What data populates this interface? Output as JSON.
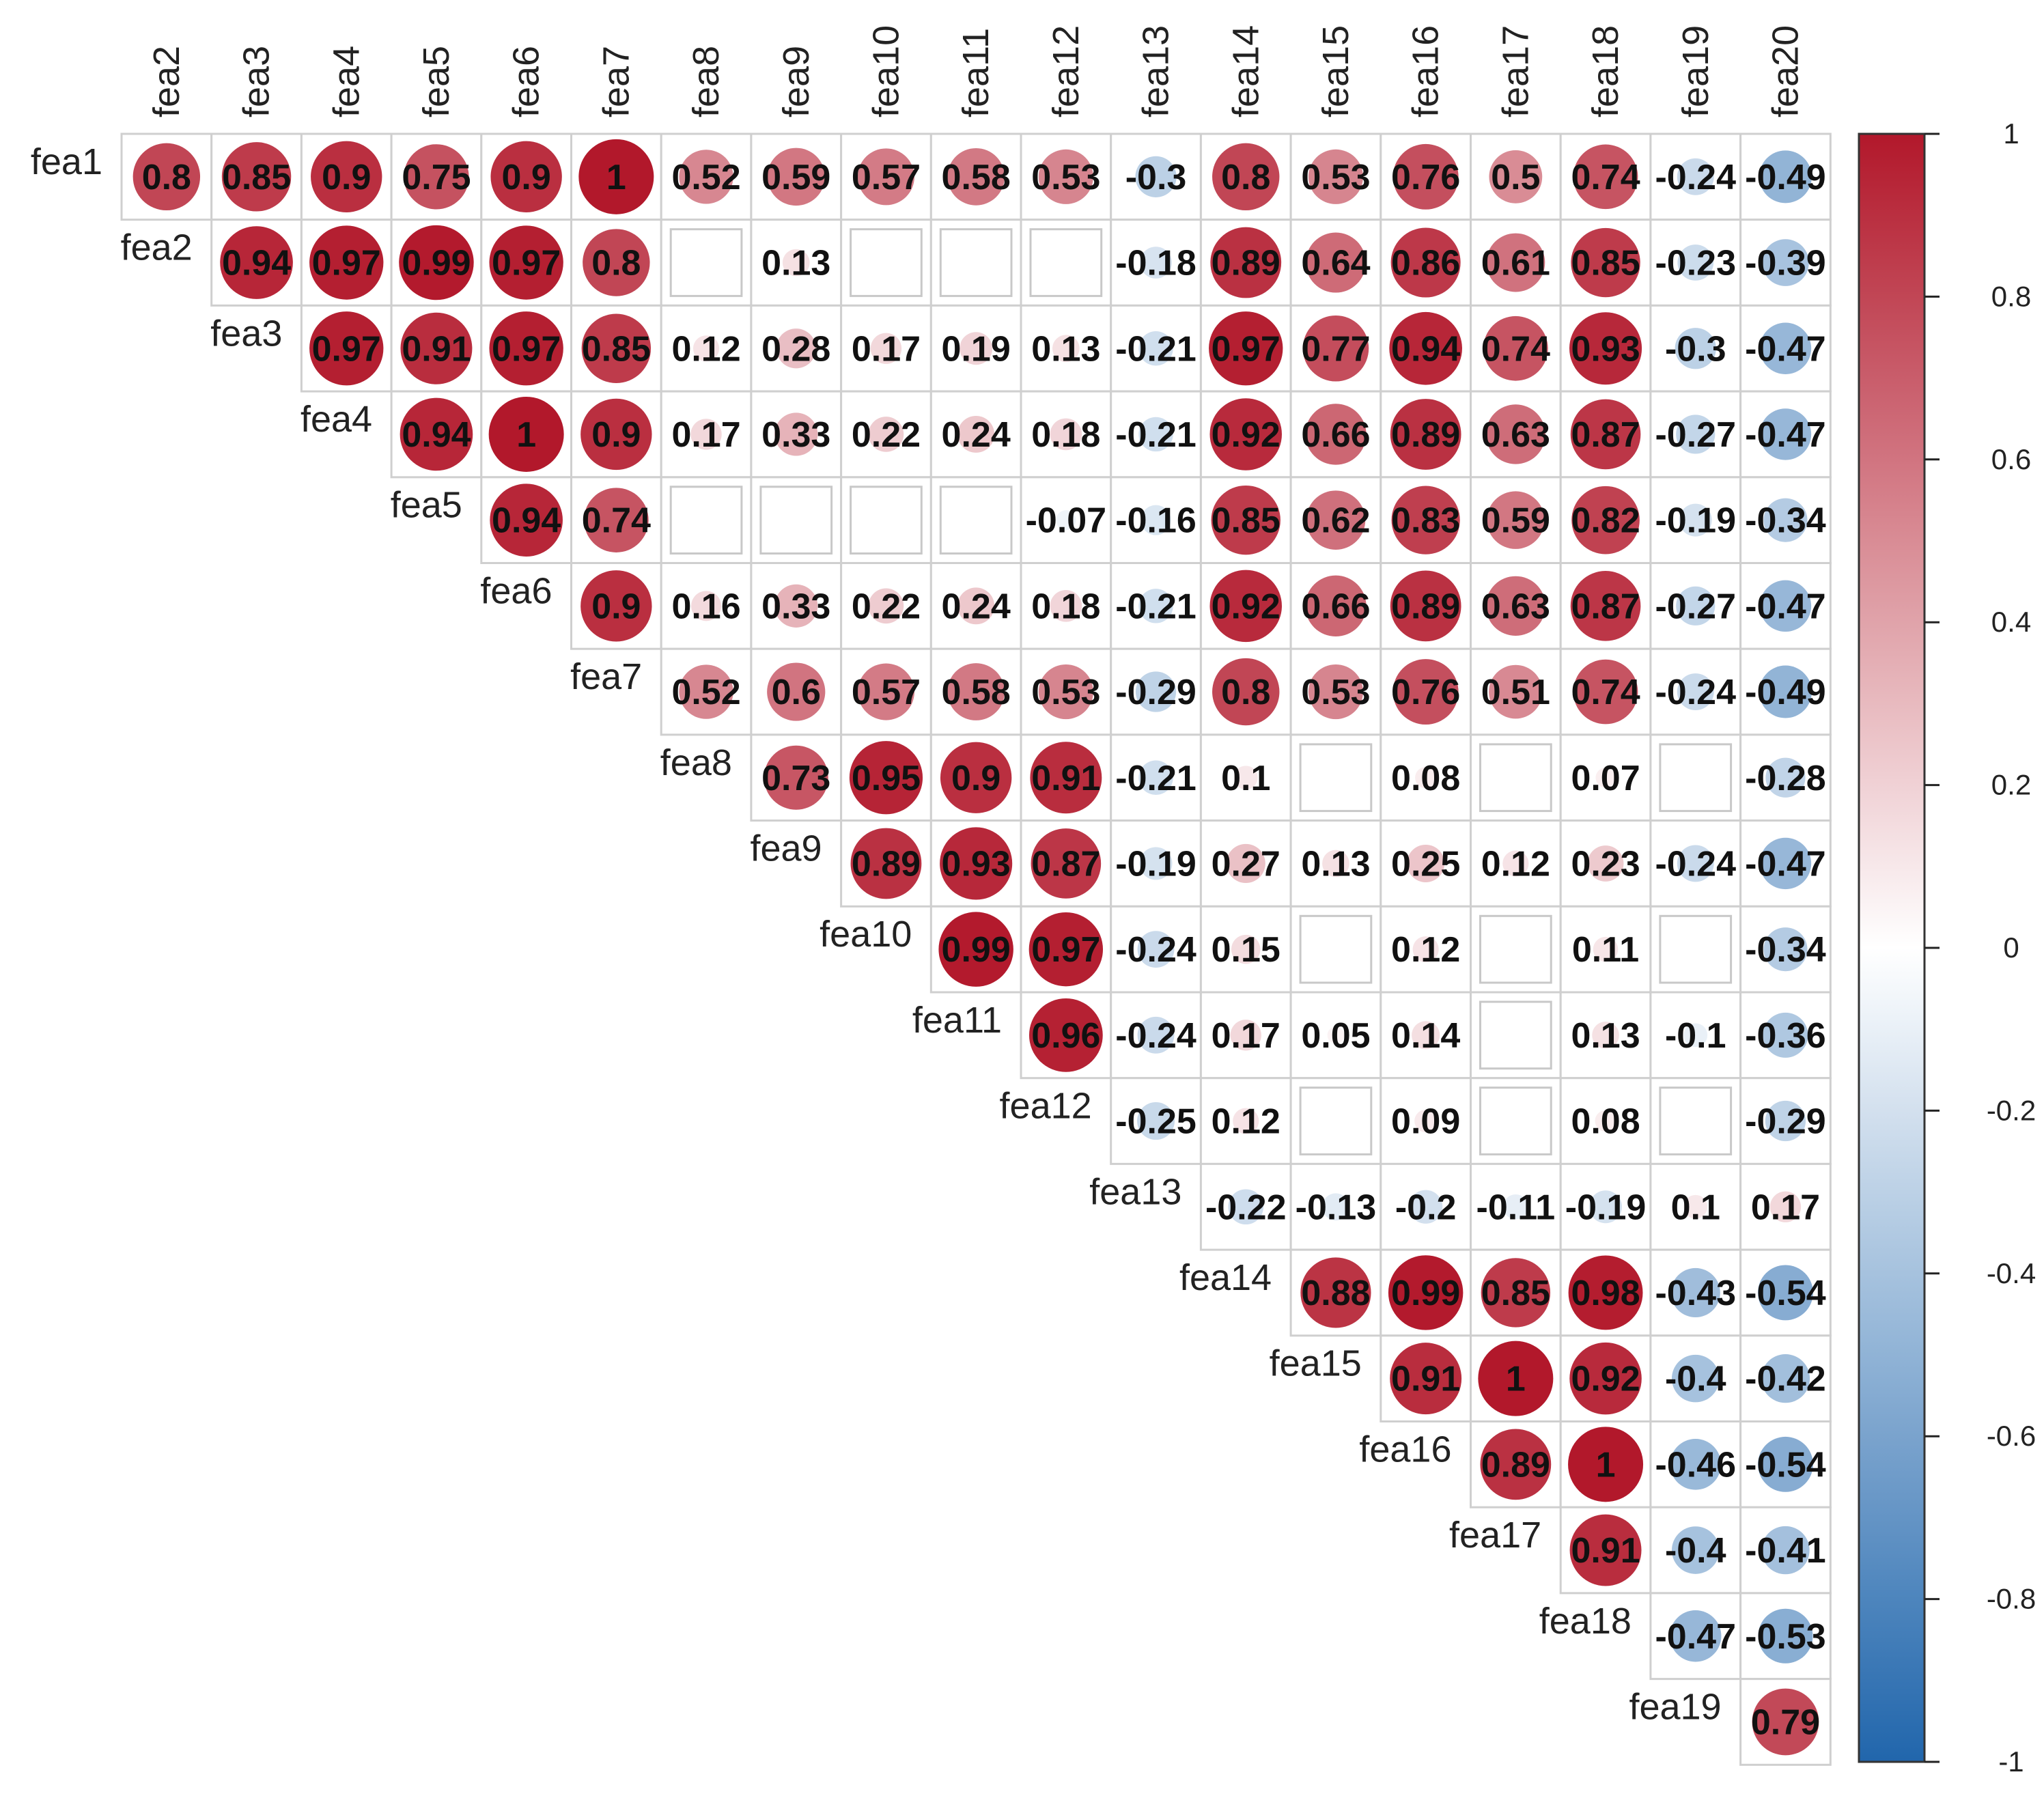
{
  "chart_data": {
    "type": "heatmap",
    "title": "",
    "xlabel": "",
    "ylabel": "",
    "row_labels": [
      "fea1",
      "fea2",
      "fea3",
      "fea4",
      "fea5",
      "fea6",
      "fea7",
      "fea8",
      "fea9",
      "fea10",
      "fea11",
      "fea12",
      "fea13",
      "fea14",
      "fea15",
      "fea16",
      "fea17",
      "fea18",
      "fea19"
    ],
    "col_labels": [
      "fea2",
      "fea3",
      "fea4",
      "fea5",
      "fea6",
      "fea7",
      "fea8",
      "fea9",
      "fea10",
      "fea11",
      "fea12",
      "fea13",
      "fea14",
      "fea15",
      "fea16",
      "fea17",
      "fea18",
      "fea19",
      "fea20"
    ],
    "matrix": [
      [
        0.8,
        0.85,
        0.9,
        0.75,
        0.9,
        1,
        0.52,
        0.59,
        0.57,
        0.58,
        0.53,
        -0.3,
        0.8,
        0.53,
        0.76,
        0.5,
        0.74,
        -0.24,
        -0.49
      ],
      [
        0.94,
        0.97,
        0.99,
        0.97,
        0.8,
        null,
        0.13,
        null,
        null,
        null,
        -0.18,
        0.89,
        0.64,
        0.86,
        0.61,
        0.85,
        -0.23,
        -0.39
      ],
      [
        0.97,
        0.91,
        0.97,
        0.85,
        0.12,
        0.28,
        0.17,
        0.19,
        0.13,
        -0.21,
        0.97,
        0.77,
        0.94,
        0.74,
        0.93,
        -0.3,
        -0.47
      ],
      [
        0.94,
        1,
        0.9,
        0.17,
        0.33,
        0.22,
        0.24,
        0.18,
        -0.21,
        0.92,
        0.66,
        0.89,
        0.63,
        0.87,
        -0.27,
        -0.47
      ],
      [
        0.94,
        0.74,
        null,
        null,
        null,
        null,
        -0.07,
        -0.16,
        0.85,
        0.62,
        0.83,
        0.59,
        0.82,
        -0.19,
        -0.34
      ],
      [
        0.9,
        0.16,
        0.33,
        0.22,
        0.24,
        0.18,
        -0.21,
        0.92,
        0.66,
        0.89,
        0.63,
        0.87,
        -0.27,
        -0.47
      ],
      [
        0.52,
        0.6,
        0.57,
        0.58,
        0.53,
        -0.29,
        0.8,
        0.53,
        0.76,
        0.51,
        0.74,
        -0.24,
        -0.49
      ],
      [
        0.73,
        0.95,
        0.9,
        0.91,
        -0.21,
        0.1,
        null,
        0.08,
        null,
        0.07,
        null,
        -0.28
      ],
      [
        0.89,
        0.93,
        0.87,
        -0.19,
        0.27,
        0.13,
        0.25,
        0.12,
        0.23,
        -0.24,
        -0.47
      ],
      [
        0.99,
        0.97,
        -0.24,
        0.15,
        null,
        0.12,
        null,
        0.11,
        null,
        -0.34
      ],
      [
        0.96,
        -0.24,
        0.17,
        0.05,
        0.14,
        null,
        0.13,
        -0.1,
        -0.36
      ],
      [
        -0.25,
        0.12,
        null,
        0.09,
        null,
        0.08,
        null,
        -0.29
      ],
      [
        -0.22,
        -0.13,
        -0.2,
        -0.11,
        -0.19,
        0.1,
        0.17
      ],
      [
        0.88,
        0.99,
        0.85,
        0.98,
        -0.43,
        -0.54
      ],
      [
        0.91,
        1,
        0.92,
        -0.4,
        -0.42
      ],
      [
        0.89,
        1,
        -0.46,
        -0.54
      ],
      [
        0.91,
        -0.4,
        -0.41
      ],
      [
        -0.47,
        -0.53
      ],
      [
        0.79
      ]
    ],
    "colorbar": {
      "range": [
        -1,
        1
      ],
      "ticks": [
        1,
        0.8,
        0.6,
        0.4,
        0.2,
        0,
        -0.2,
        -0.4,
        -0.6,
        -0.8,
        -1
      ],
      "tick_labels": [
        "1",
        "0.8",
        "0.6",
        "0.4",
        "0.2",
        "0",
        "-0.2",
        "-0.4",
        "-0.6",
        "-0.8",
        "-1"
      ],
      "colors": {
        "neg": "#2166ac",
        "mid": "#ffffff",
        "pos": "#b2182b"
      }
    }
  }
}
